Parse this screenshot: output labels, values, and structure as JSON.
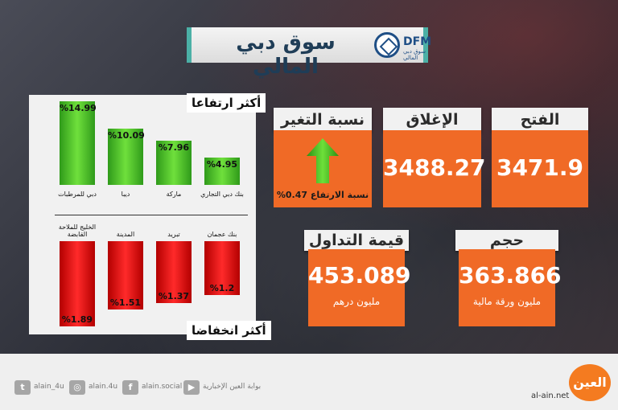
{
  "title": "سوق دبي المالي",
  "logo": {
    "name": "DFM",
    "sub": "سوق دبي المالي"
  },
  "gainers_label": "أكثر ارتفاعا",
  "losers_label": "أكثر انخفاضا",
  "chart_data": {
    "type": "bar",
    "gainers": {
      "categories": [
        "دبي للمرطبات",
        "ديبا",
        "ماركة",
        "بنك دبي التجاري"
      ],
      "values": [
        14.99,
        10.09,
        7.96,
        4.95
      ],
      "labels": [
        "%14.99",
        "%10.09",
        "%7.96",
        "%4.95"
      ],
      "color": "#3fbf22"
    },
    "losers": {
      "categories": [
        "الخليج للملاحة القابضة",
        "المدينة",
        "تبريد",
        "بنك عجمان"
      ],
      "values": [
        1.89,
        1.51,
        1.37,
        1.2
      ],
      "labels": [
        "%1.89",
        "%1.51",
        "%1.37",
        "%1.2"
      ],
      "color": "#e00000"
    }
  },
  "cards": {
    "open": {
      "label": "الفتح",
      "value": "3471.9"
    },
    "close": {
      "label": "الإغلاق",
      "value": "3488.27"
    },
    "change": {
      "label": "نسبة التغير",
      "sub": "نسبة الارتفاع 0.47%"
    },
    "volume": {
      "label": "حجم التداولات",
      "value": "363.866",
      "sub": "مليون ورقة مالية"
    },
    "turnover": {
      "label": "قيمة التداول",
      "value": "453.089",
      "sub": "مليون درهم"
    }
  },
  "footer": {
    "twitter": "alain_4u",
    "instagram": "alain.4u",
    "facebook": "alain.social",
    "youtube": "بوابة العين الإخبارية",
    "site": "al-ain.net",
    "brand": "العين"
  },
  "colors": {
    "accent": "#f06a26",
    "banner": "#4bb0a6"
  }
}
